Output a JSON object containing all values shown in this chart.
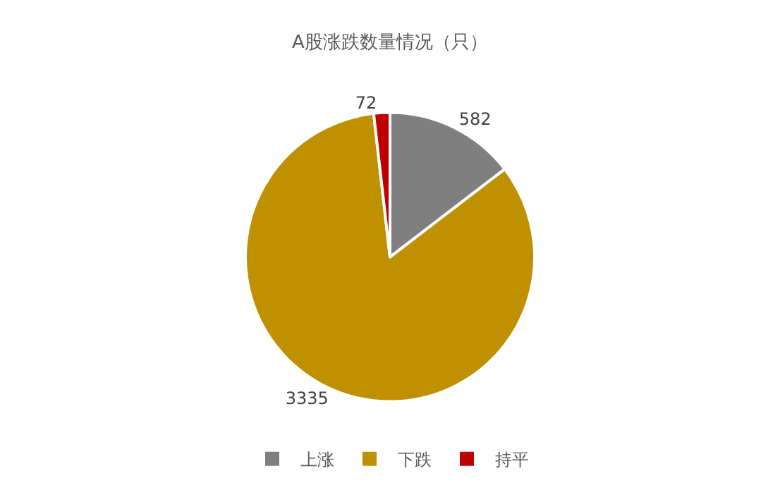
{
  "chart_data": {
    "type": "pie",
    "title": "A股涨跌数量情况（只）",
    "categories": [
      "上涨",
      "下跌",
      "持平"
    ],
    "values": [
      582,
      3335,
      72
    ],
    "colors": [
      "#7f7f7f",
      "#bf9000",
      "#c00000"
    ],
    "data_labels": true,
    "legend": "bottom"
  }
}
